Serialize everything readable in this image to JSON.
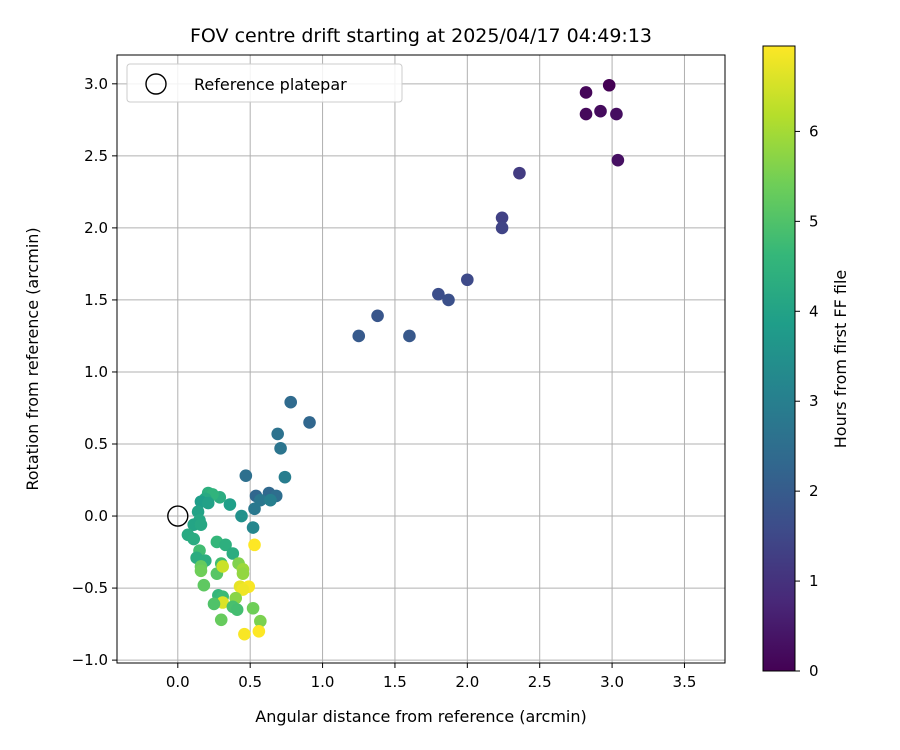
{
  "chart_data": {
    "type": "scatter",
    "title": "FOV centre drift starting at 2025/04/17 04:49:13",
    "xlabel": "Angular distance from reference (arcmin)",
    "ylabel": "Rotation from reference (arcmin)",
    "xlim": [
      -0.42,
      3.78
    ],
    "ylim": [
      -1.02,
      3.2
    ],
    "xticks": [
      0.0,
      0.5,
      1.0,
      1.5,
      2.0,
      2.5,
      3.0,
      3.5
    ],
    "xtick_labels": [
      "0.0",
      "0.5",
      "1.0",
      "1.5",
      "2.0",
      "2.5",
      "3.0",
      "3.5"
    ],
    "yticks": [
      -1.0,
      -0.5,
      0.0,
      0.5,
      1.0,
      1.5,
      2.0,
      2.5,
      3.0
    ],
    "ytick_labels": [
      "−1.0",
      "−0.5",
      "0.0",
      "0.5",
      "1.0",
      "1.5",
      "2.0",
      "2.5",
      "3.0"
    ],
    "grid": true,
    "legend": {
      "placement": "top-left",
      "entries": [
        {
          "label": "Reference platepar",
          "marker": "open-circle",
          "x": 0.0,
          "y": 0.0
        }
      ]
    },
    "colorbar": {
      "label": "Hours from first FF file",
      "range": [
        0,
        6.95
      ],
      "ticks": [
        0,
        1,
        2,
        3,
        4,
        5,
        6
      ],
      "tick_labels": [
        "0",
        "1",
        "2",
        "3",
        "4",
        "5",
        "6"
      ],
      "colormap": "viridis"
    },
    "points": [
      {
        "x": 2.98,
        "y": 2.99,
        "hours": 0.0
      },
      {
        "x": 2.82,
        "y": 2.94,
        "hours": 0.1
      },
      {
        "x": 2.82,
        "y": 2.79,
        "hours": 0.15
      },
      {
        "x": 2.92,
        "y": 2.81,
        "hours": 0.2
      },
      {
        "x": 3.03,
        "y": 2.79,
        "hours": 0.25
      },
      {
        "x": 3.04,
        "y": 2.47,
        "hours": 0.3
      },
      {
        "x": 2.36,
        "y": 2.38,
        "hours": 1.2
      },
      {
        "x": 2.24,
        "y": 2.07,
        "hours": 1.35
      },
      {
        "x": 2.24,
        "y": 2.0,
        "hours": 1.4
      },
      {
        "x": 2.0,
        "y": 1.64,
        "hours": 1.55
      },
      {
        "x": 1.8,
        "y": 1.54,
        "hours": 1.65
      },
      {
        "x": 1.87,
        "y": 1.5,
        "hours": 1.7
      },
      {
        "x": 1.38,
        "y": 1.39,
        "hours": 1.85
      },
      {
        "x": 1.25,
        "y": 1.25,
        "hours": 1.95
      },
      {
        "x": 1.6,
        "y": 1.25,
        "hours": 1.9
      },
      {
        "x": 0.91,
        "y": 0.65,
        "hours": 2.3
      },
      {
        "x": 0.78,
        "y": 0.79,
        "hours": 2.4
      },
      {
        "x": 0.69,
        "y": 0.57,
        "hours": 2.6
      },
      {
        "x": 0.71,
        "y": 0.47,
        "hours": 2.7
      },
      {
        "x": 0.47,
        "y": 0.28,
        "hours": 2.55
      },
      {
        "x": 0.74,
        "y": 0.27,
        "hours": 2.95
      },
      {
        "x": 0.54,
        "y": 0.14,
        "hours": 2.3
      },
      {
        "x": 0.63,
        "y": 0.16,
        "hours": 2.35
      },
      {
        "x": 0.68,
        "y": 0.14,
        "hours": 2.5
      },
      {
        "x": 0.57,
        "y": 0.11,
        "hours": 2.75
      },
      {
        "x": 0.64,
        "y": 0.11,
        "hours": 3.0
      },
      {
        "x": 0.53,
        "y": 0.05,
        "hours": 2.8
      },
      {
        "x": 0.52,
        "y": -0.08,
        "hours": 3.2
      },
      {
        "x": 0.44,
        "y": 0.0,
        "hours": 3.5
      },
      {
        "x": 0.36,
        "y": 0.08,
        "hours": 3.9
      },
      {
        "x": 0.29,
        "y": 0.13,
        "hours": 4.3
      },
      {
        "x": 0.21,
        "y": 0.16,
        "hours": 4.4
      },
      {
        "x": 0.24,
        "y": 0.15,
        "hours": 4.5
      },
      {
        "x": 0.19,
        "y": 0.12,
        "hours": 4.2
      },
      {
        "x": 0.16,
        "y": 0.1,
        "hours": 3.85
      },
      {
        "x": 0.21,
        "y": 0.09,
        "hours": 3.95
      },
      {
        "x": 0.14,
        "y": 0.03,
        "hours": 4.0
      },
      {
        "x": 0.15,
        "y": -0.03,
        "hours": 4.1
      },
      {
        "x": 0.11,
        "y": -0.06,
        "hours": 4.05
      },
      {
        "x": 0.16,
        "y": -0.06,
        "hours": 4.15
      },
      {
        "x": 0.07,
        "y": -0.13,
        "hours": 4.2
      },
      {
        "x": 0.11,
        "y": -0.16,
        "hours": 4.25
      },
      {
        "x": 0.27,
        "y": -0.18,
        "hours": 4.6
      },
      {
        "x": 0.33,
        "y": -0.2,
        "hours": 4.4
      },
      {
        "x": 0.38,
        "y": -0.26,
        "hours": 4.3
      },
      {
        "x": 0.15,
        "y": -0.24,
        "hours": 4.8
      },
      {
        "x": 0.13,
        "y": -0.29,
        "hours": 4.3
      },
      {
        "x": 0.19,
        "y": -0.31,
        "hours": 4.35
      },
      {
        "x": 0.16,
        "y": -0.35,
        "hours": 5.3
      },
      {
        "x": 0.16,
        "y": -0.38,
        "hours": 5.4
      },
      {
        "x": 0.27,
        "y": -0.4,
        "hours": 5.1
      },
      {
        "x": 0.3,
        "y": -0.33,
        "hours": 4.8
      },
      {
        "x": 0.42,
        "y": -0.33,
        "hours": 5.6
      },
      {
        "x": 0.45,
        "y": -0.37,
        "hours": 5.9
      },
      {
        "x": 0.45,
        "y": -0.4,
        "hours": 5.8
      },
      {
        "x": 0.31,
        "y": -0.35,
        "hours": 6.4
      },
      {
        "x": 0.18,
        "y": -0.48,
        "hours": 5.2
      },
      {
        "x": 0.43,
        "y": -0.49,
        "hours": 6.7
      },
      {
        "x": 0.49,
        "y": -0.49,
        "hours": 6.9
      },
      {
        "x": 0.45,
        "y": -0.51,
        "hours": 6.8
      },
      {
        "x": 0.53,
        "y": -0.2,
        "hours": 6.95
      },
      {
        "x": 0.28,
        "y": -0.55,
        "hours": 4.6
      },
      {
        "x": 0.31,
        "y": -0.56,
        "hours": 4.7
      },
      {
        "x": 0.4,
        "y": -0.57,
        "hours": 5.7
      },
      {
        "x": 0.31,
        "y": -0.6,
        "hours": 6.6
      },
      {
        "x": 0.25,
        "y": -0.61,
        "hours": 5.0
      },
      {
        "x": 0.38,
        "y": -0.63,
        "hours": 4.9
      },
      {
        "x": 0.41,
        "y": -0.65,
        "hours": 4.85
      },
      {
        "x": 0.52,
        "y": -0.64,
        "hours": 5.4
      },
      {
        "x": 0.3,
        "y": -0.72,
        "hours": 5.3
      },
      {
        "x": 0.57,
        "y": -0.73,
        "hours": 5.55
      },
      {
        "x": 0.46,
        "y": -0.82,
        "hours": 6.9
      },
      {
        "x": 0.56,
        "y": -0.8,
        "hours": 6.95
      }
    ]
  }
}
